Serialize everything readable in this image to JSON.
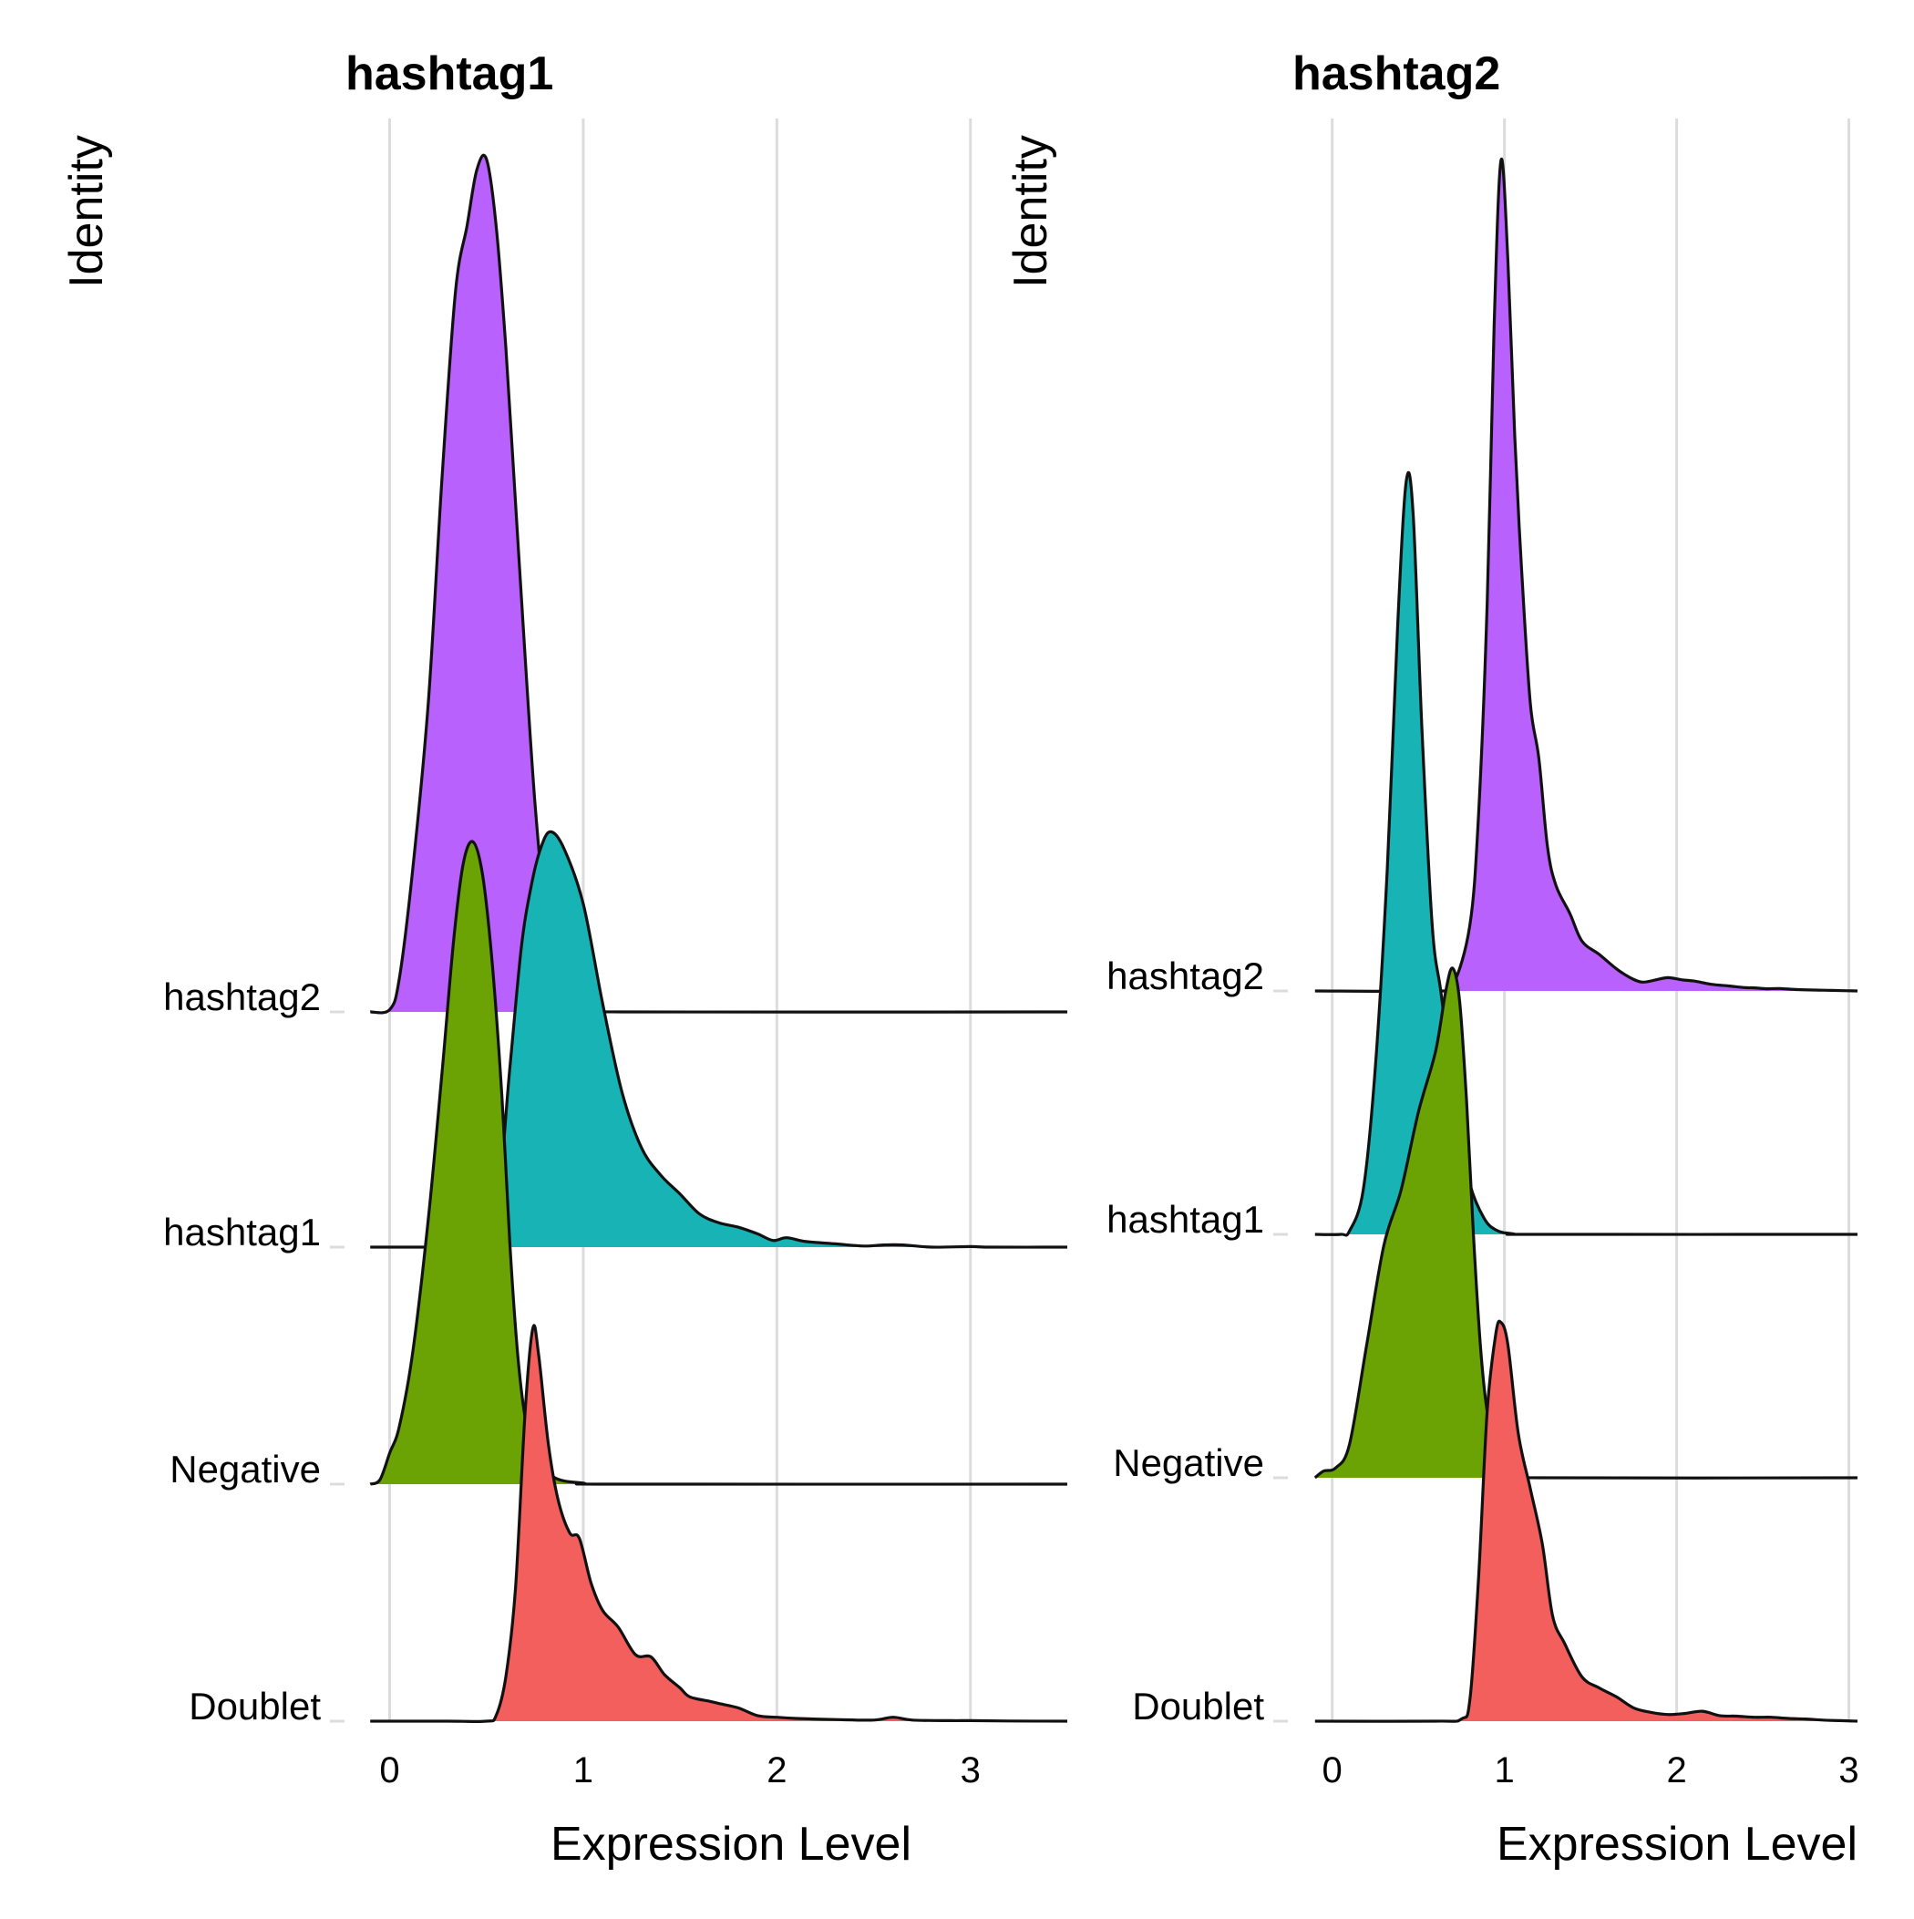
{
  "chart_data": [
    {
      "type": "ridgeline",
      "title": "hashtag1",
      "xlabel": "Expression Level",
      "ylabel": "Identity",
      "xlim": [
        -0.12,
        3.5
      ],
      "x_ticks": [
        0,
        1,
        2,
        3
      ],
      "grid": true,
      "legend": "none",
      "categories": [
        "Doublet",
        "Negative",
        "hashtag1",
        "hashtag2"
      ],
      "series": [
        {
          "name": "Doublet",
          "color": "#F25F5C",
          "points": [
            [
              -0.1,
              0
            ],
            [
              0.3,
              0
            ],
            [
              0.5,
              0.0
            ],
            [
              0.55,
              0.05
            ],
            [
              0.6,
              0.4
            ],
            [
              0.65,
              1.2
            ],
            [
              0.7,
              2.8
            ],
            [
              0.74,
              3.55
            ],
            [
              0.77,
              3.3
            ],
            [
              0.82,
              2.5
            ],
            [
              0.87,
              2.0
            ],
            [
              0.93,
              1.7
            ],
            [
              0.98,
              1.65
            ],
            [
              1.04,
              1.25
            ],
            [
              1.1,
              1.0
            ],
            [
              1.18,
              0.85
            ],
            [
              1.27,
              0.6
            ],
            [
              1.35,
              0.58
            ],
            [
              1.42,
              0.42
            ],
            [
              1.5,
              0.3
            ],
            [
              1.55,
              0.22
            ],
            [
              1.65,
              0.18
            ],
            [
              1.7,
              0.16
            ],
            [
              1.8,
              0.12
            ],
            [
              1.9,
              0.05
            ],
            [
              2.0,
              0.035
            ],
            [
              2.1,
              0.025
            ],
            [
              2.3,
              0.015
            ],
            [
              2.5,
              0.01
            ],
            [
              2.6,
              0.035
            ],
            [
              2.7,
              0.01
            ],
            [
              2.9,
              0.005
            ],
            [
              3.0,
              0.005
            ],
            [
              3.2,
              0.002
            ],
            [
              3.5,
              0
            ]
          ]
        },
        {
          "name": "Negative",
          "color": "#6BA305",
          "points": [
            [
              -0.1,
              0
            ],
            [
              -0.05,
              0.04
            ],
            [
              0.0,
              0.28
            ],
            [
              0.05,
              0.52
            ],
            [
              0.12,
              1.2
            ],
            [
              0.2,
              2.4
            ],
            [
              0.27,
              3.7
            ],
            [
              0.33,
              4.9
            ],
            [
              0.38,
              5.6
            ],
            [
              0.43,
              5.8
            ],
            [
              0.48,
              5.5
            ],
            [
              0.53,
              4.7
            ],
            [
              0.58,
              3.5
            ],
            [
              0.62,
              2.2
            ],
            [
              0.66,
              1.2
            ],
            [
              0.7,
              0.6
            ],
            [
              0.75,
              0.25
            ],
            [
              0.85,
              0.06
            ],
            [
              1.0,
              0.01
            ],
            [
              1.2,
              0
            ],
            [
              3.5,
              0
            ]
          ]
        },
        {
          "name": "hashtag1",
          "color": "#18B3B5",
          "points": [
            [
              -0.1,
              0
            ],
            [
              0.2,
              0
            ],
            [
              0.35,
              0.0
            ],
            [
              0.45,
              0.02
            ],
            [
              0.55,
              0.3
            ],
            [
              0.62,
              1.6
            ],
            [
              0.68,
              2.7
            ],
            [
              0.73,
              3.25
            ],
            [
              0.78,
              3.6
            ],
            [
              0.83,
              3.75
            ],
            [
              0.9,
              3.6
            ],
            [
              1.0,
              3.1
            ],
            [
              1.1,
              2.2
            ],
            [
              1.2,
              1.4
            ],
            [
              1.3,
              0.9
            ],
            [
              1.4,
              0.65
            ],
            [
              1.5,
              0.48
            ],
            [
              1.6,
              0.3
            ],
            [
              1.7,
              0.22
            ],
            [
              1.8,
              0.18
            ],
            [
              1.9,
              0.12
            ],
            [
              1.98,
              0.06
            ],
            [
              2.05,
              0.085
            ],
            [
              2.15,
              0.05
            ],
            [
              2.3,
              0.03
            ],
            [
              2.45,
              0.01
            ],
            [
              2.55,
              0.02
            ],
            [
              2.65,
              0.02
            ],
            [
              2.8,
              0.0
            ],
            [
              3.0,
              0.005
            ],
            [
              3.1,
              0.0
            ],
            [
              3.5,
              0.0
            ]
          ]
        },
        {
          "name": "hashtag2",
          "color": "#B961FD",
          "points": [
            [
              -0.1,
              0
            ],
            [
              0.0,
              0.02
            ],
            [
              0.05,
              0.3
            ],
            [
              0.12,
              1.3
            ],
            [
              0.2,
              2.8
            ],
            [
              0.27,
              4.8
            ],
            [
              0.34,
              6.5
            ],
            [
              0.4,
              7.1
            ],
            [
              0.45,
              7.6
            ],
            [
              0.5,
              7.7
            ],
            [
              0.55,
              7.1
            ],
            [
              0.6,
              6.0
            ],
            [
              0.65,
              4.6
            ],
            [
              0.7,
              3.2
            ],
            [
              0.75,
              1.9
            ],
            [
              0.8,
              1.0
            ],
            [
              0.87,
              0.4
            ],
            [
              0.95,
              0.12
            ],
            [
              1.05,
              0.02
            ],
            [
              1.2,
              0
            ],
            [
              3.5,
              0
            ]
          ]
        }
      ]
    },
    {
      "type": "ridgeline",
      "title": "hashtag2",
      "xlabel": "Expression Level",
      "ylabel": "Identity",
      "xlim": [
        -0.12,
        3.05
      ],
      "x_ticks": [
        0,
        1,
        2,
        3
      ],
      "grid": true,
      "legend": "none",
      "categories": [
        "Doublet",
        "Negative",
        "hashtag1",
        "hashtag2"
      ],
      "series": [
        {
          "name": "Doublet",
          "color": "#F25F5C",
          "points": [
            [
              -0.1,
              0
            ],
            [
              0.6,
              0
            ],
            [
              0.75,
              0.02
            ],
            [
              0.8,
              0.2
            ],
            [
              0.85,
              1.3
            ],
            [
              0.9,
              2.8
            ],
            [
              0.95,
              3.5
            ],
            [
              0.98,
              3.6
            ],
            [
              1.02,
              3.4
            ],
            [
              1.08,
              2.6
            ],
            [
              1.15,
              2.1
            ],
            [
              1.22,
              1.6
            ],
            [
              1.28,
              0.95
            ],
            [
              1.35,
              0.7
            ],
            [
              1.45,
              0.4
            ],
            [
              1.55,
              0.3
            ],
            [
              1.65,
              0.22
            ],
            [
              1.75,
              0.12
            ],
            [
              1.85,
              0.08
            ],
            [
              1.95,
              0.06
            ],
            [
              2.05,
              0.07
            ],
            [
              2.15,
              0.09
            ],
            [
              2.25,
              0.05
            ],
            [
              2.35,
              0.045
            ],
            [
              2.45,
              0.035
            ],
            [
              2.55,
              0.035
            ],
            [
              2.65,
              0.025
            ],
            [
              2.75,
              0.02
            ],
            [
              2.85,
              0.01
            ],
            [
              2.95,
              0.005
            ],
            [
              3.05,
              0
            ]
          ]
        },
        {
          "name": "Negative",
          "color": "#6BA305",
          "points": [
            [
              -0.1,
              0
            ],
            [
              -0.05,
              0.06
            ],
            [
              0.02,
              0.09
            ],
            [
              0.1,
              0.3
            ],
            [
              0.2,
              1.2
            ],
            [
              0.3,
              2.1
            ],
            [
              0.4,
              2.6
            ],
            [
              0.5,
              3.3
            ],
            [
              0.6,
              3.85
            ],
            [
              0.66,
              4.4
            ],
            [
              0.7,
              4.6
            ],
            [
              0.74,
              4.3
            ],
            [
              0.78,
              3.4
            ],
            [
              0.82,
              2.2
            ],
            [
              0.86,
              1.2
            ],
            [
              0.9,
              0.6
            ],
            [
              0.96,
              0.2
            ],
            [
              1.05,
              0.03
            ],
            [
              1.2,
              0
            ],
            [
              3.05,
              0
            ]
          ]
        },
        {
          "name": "hashtag1",
          "color": "#18B3B5",
          "points": [
            [
              -0.1,
              0
            ],
            [
              0.05,
              0
            ],
            [
              0.1,
              0.03
            ],
            [
              0.18,
              0.4
            ],
            [
              0.25,
              1.5
            ],
            [
              0.32,
              3.3
            ],
            [
              0.38,
              5.5
            ],
            [
              0.43,
              6.8
            ],
            [
              0.47,
              6.5
            ],
            [
              0.52,
              4.6
            ],
            [
              0.58,
              2.8
            ],
            [
              0.63,
              2.2
            ],
            [
              0.68,
              1.6
            ],
            [
              0.73,
              1.0
            ],
            [
              0.8,
              0.45
            ],
            [
              0.88,
              0.15
            ],
            [
              0.95,
              0.04
            ],
            [
              1.05,
              0.005
            ],
            [
              1.2,
              0
            ],
            [
              3.05,
              0
            ]
          ]
        },
        {
          "name": "hashtag2",
          "color": "#B961FD",
          "points": [
            [
              -0.1,
              0
            ],
            [
              0.6,
              0
            ],
            [
              0.7,
              0.05
            ],
            [
              0.8,
              0.6
            ],
            [
              0.85,
              1.6
            ],
            [
              0.9,
              3.5
            ],
            [
              0.94,
              6.0
            ],
            [
              0.98,
              7.5
            ],
            [
              1.02,
              6.6
            ],
            [
              1.06,
              5.0
            ],
            [
              1.1,
              3.8
            ],
            [
              1.15,
              2.6
            ],
            [
              1.2,
              2.1
            ],
            [
              1.25,
              1.3
            ],
            [
              1.3,
              0.95
            ],
            [
              1.38,
              0.7
            ],
            [
              1.45,
              0.45
            ],
            [
              1.55,
              0.33
            ],
            [
              1.65,
              0.2
            ],
            [
              1.73,
              0.12
            ],
            [
              1.8,
              0.08
            ],
            [
              1.88,
              0.1
            ],
            [
              1.95,
              0.12
            ],
            [
              2.03,
              0.1
            ],
            [
              2.1,
              0.09
            ],
            [
              2.2,
              0.06
            ],
            [
              2.3,
              0.045
            ],
            [
              2.4,
              0.03
            ],
            [
              2.45,
              0.028
            ],
            [
              2.52,
              0.02
            ],
            [
              2.6,
              0.022
            ],
            [
              2.7,
              0.012
            ],
            [
              2.8,
              0.008
            ],
            [
              2.9,
              0.005
            ],
            [
              3.05,
              0
            ]
          ]
        }
      ]
    }
  ]
}
